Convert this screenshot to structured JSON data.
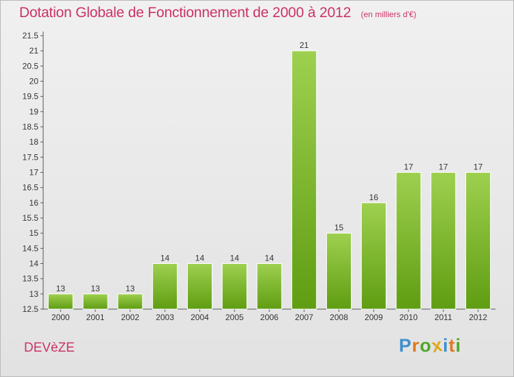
{
  "title": "Dotation Globale de Fonctionnement de 2000 à 2012",
  "subtitle": "(en milliers d'€)",
  "commune": "DEVèZE",
  "logo": {
    "letters": [
      "P",
      "r",
      "o",
      "x",
      "i",
      "t",
      "i"
    ],
    "colors": [
      "#3d8fd1",
      "#e07a1f",
      "#4ea82a",
      "#e0a81f",
      "#3d8fd1",
      "#e07a1f",
      "#4ea82a"
    ]
  },
  "colors": {
    "accent": "#cc3366",
    "bar_light": "#9ed04f",
    "bar_dark": "#5f9d12"
  },
  "chart_data": {
    "type": "bar",
    "categories": [
      "2000",
      "2001",
      "2002",
      "2003",
      "2004",
      "2005",
      "2006",
      "2007",
      "2008",
      "2009",
      "2010",
      "2011",
      "2012"
    ],
    "values": [
      13,
      13,
      13,
      14,
      14,
      14,
      14,
      21,
      15,
      16,
      17,
      17,
      17
    ],
    "value_labels": [
      "13",
      "13",
      "13",
      "14",
      "14",
      "14",
      "14",
      "21",
      "15",
      "16",
      "17",
      "17",
      "17"
    ],
    "yticks": [
      12.5,
      13,
      13.5,
      14,
      14.5,
      15,
      15.5,
      16,
      16.5,
      17,
      17.5,
      18,
      18.5,
      19,
      19.5,
      20,
      20.5,
      21,
      21.5
    ],
    "ylim": [
      12.5,
      21.5
    ],
    "title": "Dotation Globale de Fonctionnement de 2000 à 2012",
    "xlabel": "",
    "ylabel": "",
    "grid": false,
    "legend": "none"
  }
}
